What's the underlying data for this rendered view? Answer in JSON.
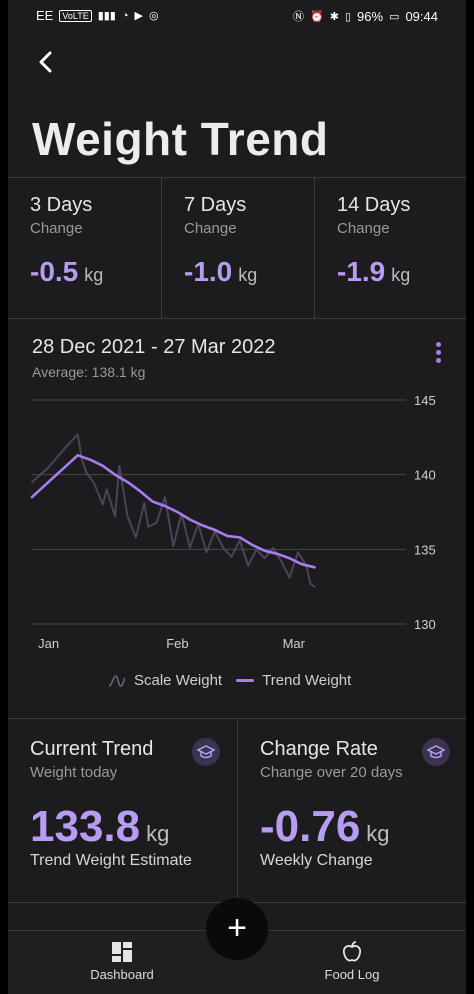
{
  "status_bar": {
    "carrier": "EE",
    "volte": "VoLTE",
    "battery": "96%",
    "time": "09:44"
  },
  "header": {
    "back_icon": "chevron-left-icon",
    "title": "Weight Trend"
  },
  "changes": [
    {
      "title": "3 Days",
      "subtitle": "Change",
      "value": "-0.5",
      "unit": "kg"
    },
    {
      "title": "7 Days",
      "subtitle": "Change",
      "value": "-1.0",
      "unit": "kg"
    },
    {
      "title": "14 Days",
      "subtitle": "Change",
      "value": "-1.9",
      "unit": "kg"
    }
  ],
  "chart_card": {
    "range": "28 Dec 2021 - 27 Mar 2022",
    "average": "Average: 138.1 kg",
    "more_icon": "more-vertical-icon"
  },
  "chart_data": {
    "type": "line",
    "x_tick_labels": [
      "Jan",
      "Feb",
      "Mar"
    ],
    "y_tick_labels": [
      "145",
      "140",
      "135",
      "130"
    ],
    "ylim": [
      130,
      145
    ],
    "grid": true,
    "legend_position": "bottom",
    "series": [
      {
        "name": "Scale Weight",
        "color": "#4a4458",
        "x": [
          "28 Dec",
          "1 Jan",
          "5 Jan",
          "8 Jan",
          "9 Jan",
          "10 Jan",
          "12 Jan",
          "14 Jan",
          "15 Jan",
          "17 Jan",
          "18 Jan",
          "20 Jan",
          "22 Jan",
          "24 Jan",
          "25 Jan",
          "27 Jan",
          "29 Jan",
          "31 Jan",
          "2 Feb",
          "4 Feb",
          "6 Feb",
          "8 Feb",
          "10 Feb",
          "12 Feb",
          "14 Feb",
          "16 Feb",
          "18 Feb",
          "20 Feb",
          "22 Feb",
          "24 Feb",
          "26 Feb",
          "28 Feb",
          "2 Mar",
          "4 Mar",
          "5 Mar",
          "6 Mar"
        ],
        "values": [
          139.5,
          140.5,
          141.8,
          142.7,
          141.0,
          140.2,
          139.4,
          138.0,
          139.0,
          137.2,
          140.6,
          137.2,
          135.8,
          138.1,
          136.5,
          136.8,
          138.5,
          135.2,
          137.4,
          135.1,
          136.7,
          134.8,
          136.2,
          135.1,
          134.5,
          135.6,
          133.9,
          135.0,
          134.4,
          135.1,
          134.2,
          133.1,
          134.8,
          133.9,
          132.7,
          132.5
        ]
      },
      {
        "name": "Trend Weight",
        "color": "#a77df0",
        "x": [
          "28 Dec",
          "8 Jan",
          "11 Jan",
          "14 Jan",
          "17 Jan",
          "20 Jan",
          "23 Jan",
          "26 Jan",
          "29 Jan",
          "1 Feb",
          "4 Feb",
          "7 Feb",
          "10 Feb",
          "13 Feb",
          "16 Feb",
          "19 Feb",
          "22 Feb",
          "25 Feb",
          "28 Feb",
          "3 Mar",
          "6 Mar"
        ],
        "values": [
          138.5,
          141.3,
          141.0,
          140.6,
          140.0,
          139.5,
          138.9,
          138.2,
          137.9,
          137.5,
          137.0,
          136.6,
          136.3,
          135.9,
          135.8,
          135.3,
          134.9,
          134.7,
          134.4,
          134.0,
          133.8
        ]
      }
    ]
  },
  "legend": {
    "scale": "Scale Weight",
    "trend": "Trend Weight"
  },
  "current_trend": {
    "title": "Current Trend",
    "subtitle": "Weight today",
    "value": "133.8",
    "unit": "kg",
    "footer": "Trend Weight Estimate",
    "icon": "graduation-cap-icon"
  },
  "change_rate": {
    "title": "Change Rate",
    "subtitle": "Change over 20 days",
    "value": "-0.76",
    "unit": "kg",
    "footer": "Weekly Change",
    "icon": "graduation-cap-icon"
  },
  "fab": {
    "icon": "plus-icon",
    "label": "+"
  },
  "nav": {
    "dashboard": {
      "label": "Dashboard",
      "icon": "dashboard-grid-icon"
    },
    "food_log": {
      "label": "Food Log",
      "icon": "apple-icon"
    }
  }
}
